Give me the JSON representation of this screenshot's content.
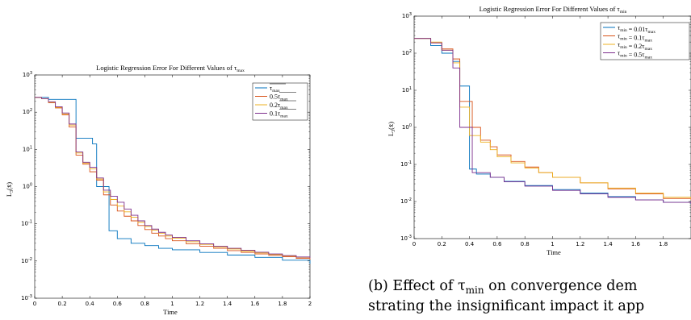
{
  "chart_data": [
    {
      "type": "line",
      "title": "Logistic Regression Error For Different Values of τ_max",
      "xlabel": "Time",
      "ylabel": "L_3(x̄)",
      "xlim": [
        0,
        2
      ],
      "ylim": [
        0.001,
        1000
      ],
      "yscale": "log",
      "xticks": [
        "0",
        "0.2",
        "0.4",
        "0.6",
        "0.8",
        "1",
        "1.2",
        "1.4",
        "1.6",
        "1.8",
        "2"
      ],
      "yticks": [
        "10^-3",
        "10^-2",
        "10^-1",
        "10^0",
        "10^1",
        "10^2",
        "10^3"
      ],
      "legend_position": "top-right",
      "series": [
        {
          "name": "τ_max",
          "color": "#0072BD",
          "x": [
            0,
            0.1,
            0.1,
            0.3,
            0.3,
            0.42,
            0.42,
            0.45,
            0.45,
            0.54,
            0.54,
            0.6,
            0.6,
            0.7,
            0.7,
            0.8,
            0.8,
            0.9,
            0.9,
            1.0,
            1.0,
            1.2,
            1.2,
            1.4,
            1.4,
            1.6,
            1.6,
            1.8,
            1.8,
            2.0
          ],
          "y": [
            250,
            250,
            220,
            220,
            20,
            20,
            14,
            14,
            1.0,
            1.0,
            0.065,
            0.065,
            0.04,
            0.04,
            0.03,
            0.03,
            0.026,
            0.026,
            0.022,
            0.022,
            0.02,
            0.02,
            0.017,
            0.017,
            0.0145,
            0.0145,
            0.0125,
            0.0125,
            0.0105,
            0.0085
          ]
        },
        {
          "name": "0.5τ_max",
          "color": "#D95319",
          "x": [
            0,
            0.05,
            0.1,
            0.15,
            0.2,
            0.25,
            0.3,
            0.35,
            0.4,
            0.45,
            0.5,
            0.55,
            0.6,
            0.65,
            0.7,
            0.75,
            0.8,
            0.85,
            0.9,
            0.95,
            1.0,
            1.1,
            1.2,
            1.3,
            1.4,
            1.5,
            1.6,
            1.7,
            1.8,
            1.9,
            2.0
          ],
          "y": [
            250,
            230,
            180,
            130,
            85,
            40,
            7,
            4,
            2.5,
            1.5,
            0.6,
            0.32,
            0.22,
            0.16,
            0.12,
            0.09,
            0.07,
            0.056,
            0.047,
            0.04,
            0.035,
            0.029,
            0.025,
            0.022,
            0.019,
            0.017,
            0.0155,
            0.0142,
            0.013,
            0.0118,
            0.0108
          ]
        },
        {
          "name": "0.2τ_max",
          "color": "#EDB120",
          "x": [
            0,
            0.05,
            0.1,
            0.15,
            0.2,
            0.25,
            0.3,
            0.35,
            0.4,
            0.45,
            0.5,
            0.55,
            0.6,
            0.65,
            0.7,
            0.75,
            0.8,
            0.85,
            0.9,
            0.95,
            1.0,
            1.1,
            1.2,
            1.3,
            1.4,
            1.5,
            1.6,
            1.7,
            1.8,
            1.9,
            2.0
          ],
          "y": [
            250,
            230,
            185,
            135,
            90,
            45,
            8,
            4.3,
            3.0,
            1.6,
            0.72,
            0.45,
            0.3,
            0.21,
            0.15,
            0.11,
            0.085,
            0.068,
            0.056,
            0.047,
            0.041,
            0.033,
            0.028,
            0.024,
            0.021,
            0.0185,
            0.0165,
            0.015,
            0.0137,
            0.0125,
            0.0115
          ]
        },
        {
          "name": "0.1τ_max",
          "color": "#7E2F8E",
          "x": [
            0,
            0.05,
            0.1,
            0.15,
            0.2,
            0.25,
            0.3,
            0.35,
            0.4,
            0.45,
            0.5,
            0.55,
            0.6,
            0.65,
            0.7,
            0.75,
            0.8,
            0.85,
            0.9,
            0.95,
            1.0,
            1.1,
            1.2,
            1.3,
            1.4,
            1.5,
            1.6,
            1.7,
            1.8,
            1.9,
            2.0
          ],
          "y": [
            250,
            232,
            190,
            140,
            95,
            48,
            8.5,
            4.5,
            3.3,
            1.7,
            0.8,
            0.55,
            0.38,
            0.25,
            0.17,
            0.12,
            0.09,
            0.072,
            0.059,
            0.05,
            0.043,
            0.035,
            0.029,
            0.025,
            0.022,
            0.0195,
            0.0172,
            0.0155,
            0.014,
            0.0128,
            0.0118
          ]
        }
      ]
    },
    {
      "type": "line",
      "title": "Logistic Regression Error For Different Values of τ_min",
      "xlabel": "Time",
      "ylabel": "L_3(x̄)",
      "xlim": [
        0,
        2
      ],
      "ylim": [
        0.001,
        1000
      ],
      "yscale": "log",
      "xticks": [
        "0",
        "0.2",
        "0.4",
        "0.6",
        "0.8",
        "1",
        "1.2",
        "1.4",
        "1.6",
        "1.8"
      ],
      "yticks": [
        "10^-3",
        "10^-2",
        "10^-1",
        "10^0",
        "10^1",
        "10^2",
        "10^3"
      ],
      "legend_position": "top-right",
      "series": [
        {
          "name": "τ_min = 0.01τ_max",
          "color": "#0072BD",
          "x": [
            0,
            0.12,
            0.12,
            0.2,
            0.2,
            0.28,
            0.28,
            0.33,
            0.33,
            0.4,
            0.4,
            0.45,
            0.45,
            0.55,
            0.55,
            0.65,
            0.65,
            0.8,
            0.8,
            1.0,
            1.0,
            1.2,
            1.2,
            1.4,
            1.4,
            1.6,
            1.6,
            1.8,
            1.8,
            2.0
          ],
          "y": [
            250,
            250,
            160,
            160,
            100,
            100,
            60,
            60,
            13,
            13,
            0.075,
            0.075,
            0.055,
            0.055,
            0.045,
            0.045,
            0.035,
            0.035,
            0.027,
            0.027,
            0.021,
            0.021,
            0.017,
            0.017,
            0.0135,
            0.0135,
            0.011,
            0.011,
            0.0095,
            0.0085
          ]
        },
        {
          "name": "τ_min = 0.1τ_max",
          "color": "#D95319",
          "x": [
            0,
            0.12,
            0.12,
            0.2,
            0.2,
            0.28,
            0.28,
            0.33,
            0.33,
            0.42,
            0.42,
            0.48,
            0.48,
            0.55,
            0.55,
            0.6,
            0.6,
            0.7,
            0.7,
            0.8,
            0.8,
            0.9,
            0.9,
            1.0,
            1.0,
            1.2,
            1.2,
            1.4,
            1.4,
            1.6,
            1.6,
            1.8,
            1.8,
            2.0
          ],
          "y": [
            250,
            250,
            190,
            190,
            130,
            130,
            70,
            70,
            5,
            5,
            1.0,
            1.0,
            0.45,
            0.45,
            0.3,
            0.3,
            0.18,
            0.18,
            0.12,
            0.12,
            0.085,
            0.085,
            0.06,
            0.06,
            0.045,
            0.045,
            0.032,
            0.032,
            0.022,
            0.022,
            0.016,
            0.016,
            0.012,
            0.011
          ]
        },
        {
          "name": "τ_min = 0.2τ_max",
          "color": "#EDB120",
          "x": [
            0,
            0.12,
            0.12,
            0.2,
            0.2,
            0.28,
            0.28,
            0.33,
            0.33,
            0.4,
            0.4,
            0.48,
            0.48,
            0.55,
            0.55,
            0.6,
            0.6,
            0.7,
            0.7,
            0.8,
            0.8,
            0.9,
            0.9,
            1.0,
            1.0,
            1.2,
            1.2,
            1.4,
            1.4,
            1.6,
            1.6,
            1.8,
            1.8,
            2.0
          ],
          "y": [
            250,
            250,
            200,
            200,
            120,
            120,
            55,
            55,
            3.5,
            3.5,
            0.6,
            0.6,
            0.4,
            0.4,
            0.25,
            0.25,
            0.16,
            0.16,
            0.11,
            0.11,
            0.08,
            0.08,
            0.06,
            0.06,
            0.045,
            0.045,
            0.032,
            0.032,
            0.023,
            0.023,
            0.017,
            0.017,
            0.013,
            0.0115
          ]
        },
        {
          "name": "τ_min = 0.5τ_max",
          "color": "#7E2F8E",
          "x": [
            0,
            0.12,
            0.12,
            0.2,
            0.2,
            0.28,
            0.28,
            0.33,
            0.33,
            0.42,
            0.42,
            0.55,
            0.55,
            0.65,
            0.65,
            0.8,
            0.8,
            1.0,
            1.0,
            1.2,
            1.2,
            1.4,
            1.4,
            1.6,
            1.6,
            1.8,
            1.8,
            2.0
          ],
          "y": [
            250,
            250,
            190,
            190,
            120,
            120,
            40,
            40,
            1.0,
            1.0,
            0.06,
            0.06,
            0.045,
            0.045,
            0.034,
            0.034,
            0.026,
            0.026,
            0.02,
            0.02,
            0.016,
            0.016,
            0.013,
            0.013,
            0.011,
            0.011,
            0.0095,
            0.0088
          ]
        }
      ]
    }
  ],
  "caption": {
    "line1": "(b) Effect of τ",
    "line1_sub": "min",
    "line1_rest": " on convergence dem",
    "line2": "strating the insignificant impact it app"
  }
}
